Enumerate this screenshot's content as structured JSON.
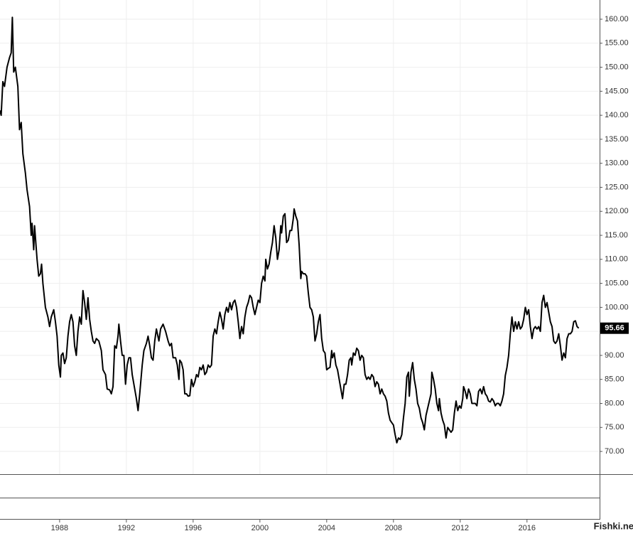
{
  "chart_data": {
    "type": "line",
    "color": "#000000",
    "grid": true,
    "watermark": "Fishki.net",
    "xlim": [
      1984.43,
      2020.35
    ],
    "ylim": [
      65.27,
      164.0
    ],
    "xticks": [
      1988,
      1992,
      1996,
      2000,
      2004,
      2008,
      2012,
      2016
    ],
    "yticks": [
      {
        "value": 70,
        "label": "70.00"
      },
      {
        "value": 75,
        "label": "75.00"
      },
      {
        "value": 80,
        "label": "80.00"
      },
      {
        "value": 85,
        "label": "85.00"
      },
      {
        "value": 90,
        "label": "90.00"
      },
      {
        "value": 95,
        "label": "95.00"
      },
      {
        "value": 100,
        "label": "100.00"
      },
      {
        "value": 105,
        "label": "105.00"
      },
      {
        "value": 110,
        "label": "110.00"
      },
      {
        "value": 115,
        "label": "115.00"
      },
      {
        "value": 120,
        "label": "120.00"
      },
      {
        "value": 125,
        "label": "125.00"
      },
      {
        "value": 130,
        "label": "130.00"
      },
      {
        "value": 135,
        "label": "135.00"
      },
      {
        "value": 140,
        "label": "140.00"
      },
      {
        "value": 145,
        "label": "145.00"
      },
      {
        "value": 150,
        "label": "150.00"
      },
      {
        "value": 155,
        "label": "155.00"
      },
      {
        "value": 160,
        "label": "160.00"
      }
    ],
    "x": [
      1984.43,
      1984.5,
      1984.6,
      1984.7,
      1984.85,
      1985.0,
      1985.1,
      1985.17,
      1985.25,
      1985.35,
      1985.5,
      1985.6,
      1985.7,
      1985.8,
      1985.95,
      1986.05,
      1986.2,
      1986.3,
      1986.35,
      1986.45,
      1986.5,
      1986.65,
      1986.75,
      1986.85,
      1986.92,
      1987.0,
      1987.15,
      1987.3,
      1987.4,
      1987.5,
      1987.65,
      1987.75,
      1987.85,
      1987.95,
      1988.05,
      1988.1,
      1988.2,
      1988.3,
      1988.4,
      1988.5,
      1988.6,
      1988.7,
      1988.8,
      1988.9,
      1989.0,
      1989.1,
      1989.2,
      1989.3,
      1989.4,
      1989.5,
      1989.6,
      1989.7,
      1989.8,
      1989.9,
      1990.0,
      1990.1,
      1990.2,
      1990.35,
      1990.5,
      1990.6,
      1990.75,
      1990.85,
      1991.0,
      1991.1,
      1991.2,
      1991.3,
      1991.4,
      1991.5,
      1991.55,
      1991.65,
      1991.75,
      1991.85,
      1991.95,
      1992.05,
      1992.15,
      1992.25,
      1992.35,
      1992.5,
      1992.6,
      1992.7,
      1992.8,
      1992.95,
      1993.05,
      1993.2,
      1993.3,
      1993.4,
      1993.5,
      1993.6,
      1993.7,
      1993.8,
      1993.95,
      1994.05,
      1994.2,
      1994.35,
      1994.5,
      1994.6,
      1994.7,
      1994.8,
      1994.95,
      1995.05,
      1995.15,
      1995.2,
      1995.3,
      1995.4,
      1995.5,
      1995.6,
      1995.7,
      1995.8,
      1995.9,
      1996.0,
      1996.1,
      1996.2,
      1996.3,
      1996.4,
      1996.5,
      1996.6,
      1996.7,
      1996.8,
      1996.9,
      1997.0,
      1997.1,
      1997.2,
      1997.3,
      1997.4,
      1997.5,
      1997.6,
      1997.7,
      1997.8,
      1997.9,
      1998.0,
      1998.1,
      1998.2,
      1998.3,
      1998.4,
      1998.5,
      1998.6,
      1998.7,
      1998.8,
      1998.9,
      1999.0,
      1999.1,
      1999.2,
      1999.3,
      1999.4,
      1999.5,
      1999.6,
      1999.7,
      1999.8,
      1999.9,
      2000.0,
      2000.1,
      2000.2,
      2000.3,
      2000.35,
      2000.45,
      2000.55,
      2000.65,
      2000.75,
      2000.85,
      2000.95,
      2001.05,
      2001.15,
      2001.25,
      2001.3,
      2001.4,
      2001.5,
      2001.6,
      2001.7,
      2001.8,
      2001.9,
      2002.0,
      2002.05,
      2002.15,
      2002.25,
      2002.35,
      2002.45,
      2002.5,
      2002.6,
      2002.7,
      2002.8,
      2002.9,
      2003.0,
      2003.1,
      2003.2,
      2003.3,
      2003.4,
      2003.5,
      2003.6,
      2003.7,
      2003.8,
      2003.9,
      2004.0,
      2004.1,
      2004.2,
      2004.3,
      2004.35,
      2004.45,
      2004.55,
      2004.65,
      2004.75,
      2004.85,
      2004.95,
      2005.05,
      2005.15,
      2005.25,
      2005.35,
      2005.45,
      2005.5,
      2005.6,
      2005.7,
      2005.8,
      2005.9,
      2006.0,
      2006.1,
      2006.2,
      2006.3,
      2006.4,
      2006.5,
      2006.6,
      2006.7,
      2006.8,
      2006.9,
      2007.0,
      2007.1,
      2007.2,
      2007.3,
      2007.4,
      2007.5,
      2007.6,
      2007.7,
      2007.8,
      2007.9,
      2008.0,
      2008.1,
      2008.2,
      2008.3,
      2008.4,
      2008.5,
      2008.6,
      2008.7,
      2008.8,
      2008.9,
      2008.95,
      2009.05,
      2009.15,
      2009.25,
      2009.35,
      2009.45,
      2009.55,
      2009.65,
      2009.75,
      2009.85,
      2009.95,
      2010.05,
      2010.15,
      2010.25,
      2010.3,
      2010.4,
      2010.5,
      2010.6,
      2010.7,
      2010.75,
      2010.85,
      2010.95,
      2011.05,
      2011.15,
      2011.25,
      2011.35,
      2011.45,
      2011.55,
      2011.65,
      2011.75,
      2011.85,
      2011.95,
      2012.05,
      2012.15,
      2012.2,
      2012.3,
      2012.4,
      2012.5,
      2012.6,
      2012.7,
      2012.8,
      2012.9,
      2013.0,
      2013.1,
      2013.2,
      2013.3,
      2013.4,
      2013.5,
      2013.6,
      2013.7,
      2013.8,
      2013.9,
      2014.0,
      2014.1,
      2014.2,
      2014.3,
      2014.4,
      2014.5,
      2014.6,
      2014.7,
      2014.8,
      2014.9,
      2015.0,
      2015.1,
      2015.2,
      2015.3,
      2015.4,
      2015.5,
      2015.6,
      2015.7,
      2015.8,
      2015.9,
      2016.0,
      2016.1,
      2016.2,
      2016.3,
      2016.4,
      2016.5,
      2016.6,
      2016.7,
      2016.8,
      2016.9,
      2017.0,
      2017.1,
      2017.2,
      2017.3,
      2017.4,
      2017.5,
      2017.6,
      2017.7,
      2017.8,
      2017.9,
      2018.0,
      2018.1,
      2018.2,
      2018.3,
      2018.4,
      2018.5,
      2018.6,
      2018.7,
      2018.8,
      2018.9,
      2019.0,
      2019.1
    ],
    "values": [
      141,
      140,
      147,
      146,
      150,
      152,
      153,
      160.4,
      149,
      150,
      146,
      137,
      138.5,
      132,
      128,
      124.5,
      121,
      115,
      117.5,
      112,
      117,
      110,
      106.5,
      107,
      109,
      105,
      100,
      98,
      96,
      98,
      99.5,
      97,
      94,
      88,
      85.5,
      90,
      90.5,
      88.3,
      89.5,
      94,
      97,
      98.5,
      97,
      92,
      90,
      95,
      98,
      96.5,
      103.5,
      101,
      97.5,
      102,
      97.5,
      95,
      93,
      92.5,
      93.5,
      93,
      91,
      87,
      86,
      83,
      82.8,
      82,
      83.5,
      92,
      91.5,
      94,
      96.5,
      93,
      90,
      90,
      84,
      88,
      89.5,
      89.5,
      86,
      83,
      81,
      78.5,
      82,
      88,
      91,
      92.5,
      94,
      92,
      89.5,
      89,
      93,
      95.5,
      93,
      95.5,
      96.5,
      95,
      93,
      92,
      92.5,
      89.5,
      89.5,
      88,
      85,
      89,
      88.5,
      87,
      82,
      82,
      81.5,
      81.6,
      85,
      83.5,
      84.5,
      86,
      85.5,
      87.5,
      87,
      88,
      86,
      86.5,
      88,
      87.5,
      88,
      94,
      95.5,
      94.5,
      97,
      99,
      97.5,
      95.5,
      98.5,
      100,
      99,
      101,
      99.5,
      101,
      101.5,
      100,
      97,
      93.5,
      96,
      94.5,
      98,
      100,
      101,
      102.5,
      102,
      100,
      98.5,
      100,
      101.5,
      101,
      105,
      106.5,
      105.5,
      110,
      108,
      109,
      111.5,
      113.5,
      117,
      114.5,
      110,
      112,
      117,
      115.5,
      119,
      119.5,
      113.5,
      114,
      116,
      116,
      118.5,
      120.5,
      119,
      118,
      113,
      106,
      107.5,
      107,
      107,
      106.5,
      103,
      100,
      99.5,
      98,
      93,
      94.5,
      97,
      98.5,
      93.5,
      91,
      90.5,
      87,
      87.3,
      87.5,
      91,
      89.5,
      90.5,
      88,
      87,
      85,
      83,
      81,
      84,
      84,
      86,
      89,
      89.5,
      88,
      90.5,
      90,
      91.5,
      91,
      89,
      90,
      89.5,
      86,
      85,
      85.5,
      85,
      86,
      85.5,
      83.5,
      84.5,
      84,
      82,
      83,
      82,
      81.5,
      80.5,
      78,
      76.5,
      76,
      75.5,
      73.5,
      71.8,
      72.8,
      72.5,
      73.5,
      77,
      80,
      85.5,
      86.5,
      81.5,
      86.5,
      88.5,
      85,
      83,
      80,
      79,
      77,
      76,
      74.5,
      77.5,
      79,
      80.5,
      82,
      86.5,
      85,
      83,
      80,
      78.5,
      81,
      78,
      76.5,
      75.5,
      72.8,
      75,
      74.5,
      74,
      74.5,
      78,
      80.5,
      78.5,
      79.5,
      79,
      81,
      83.5,
      82.5,
      81,
      83,
      82,
      80,
      80,
      80,
      79.5,
      82.5,
      83,
      82,
      83.5,
      82,
      81.5,
      80.5,
      80.3,
      81,
      80.5,
      79.5,
      80,
      80,
      79.5,
      80.5,
      82,
      85.8,
      87.5,
      90,
      94.5,
      98,
      95,
      97,
      95.5,
      97,
      95.5,
      96,
      97.5,
      100,
      98.5,
      99.5,
      96,
      93.5,
      95.5,
      96,
      95.5,
      96,
      95,
      101,
      102.5,
      100,
      101,
      99,
      97,
      96,
      93,
      92.5,
      93,
      94.5,
      92,
      89,
      90.5,
      89.5,
      93.5,
      94.5,
      94.5,
      95,
      97,
      97.2,
      96,
      95.66
    ]
  }
}
